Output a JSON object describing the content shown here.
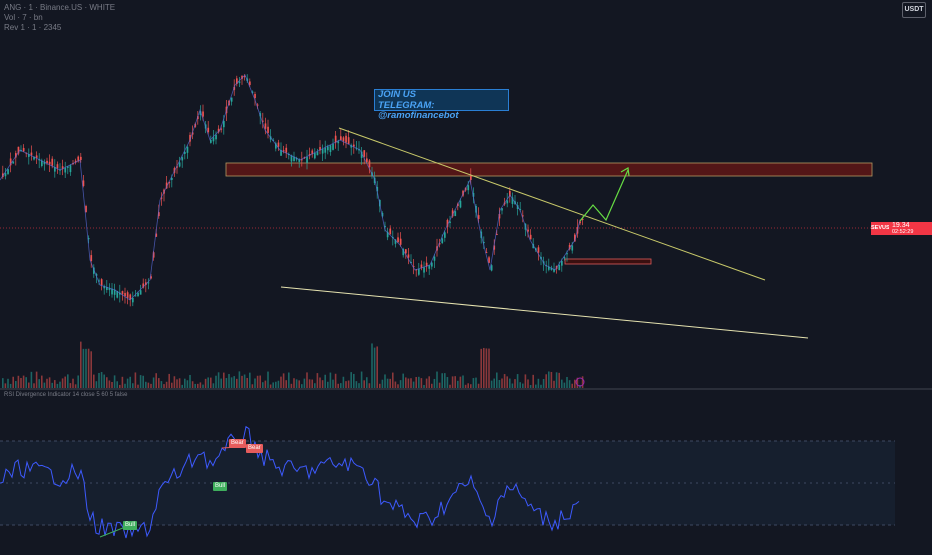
{
  "header": {
    "symbol_line": "ANG · 1 · Binance.US · WHITE",
    "sub_line1": "Vol · 7 · bn",
    "sub_line2": "Rev 1 · 1 · 2345"
  },
  "currency": "USDT",
  "promo": {
    "line1": "JOIN US",
    "line2": "TELEGRAM: @ramofinancebot"
  },
  "price": {
    "symbol": "SEVUSDT",
    "value": "19.34",
    "countdown": "02:52:29"
  },
  "oscillator": {
    "legend": "RSI Divergence Indicator 14 close 5 60 5 false",
    "labels": [
      "Bear",
      "Bear",
      "Bull",
      "Bull"
    ]
  },
  "colors": {
    "background": "#131722",
    "up_candle": "#26a69a",
    "down_candle": "#ef5350",
    "trendline": "#c8c96a",
    "resistance_zone": "#5a1616",
    "rsi_line": "#3d5afe",
    "projection_arrow": "#66dd44"
  }
}
